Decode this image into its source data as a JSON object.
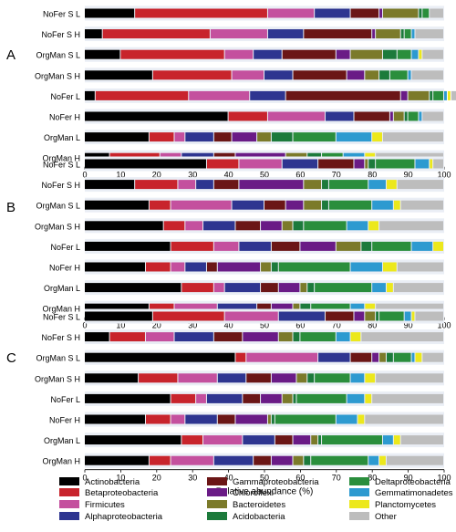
{
  "chart_data": [
    {
      "type": "bar",
      "panel": "A",
      "orientation": "horizontal",
      "stacked": true,
      "xlim": [
        0,
        100
      ],
      "xticks": [
        0,
        10,
        20,
        30,
        40,
        50,
        60,
        70,
        80,
        90,
        100
      ],
      "categories": [
        "NoFer S L",
        "NoFer S H",
        "OrgMan S L",
        "OrgMan S H",
        "NoFer L",
        "NoFer H",
        "OrgMan L",
        "OrgMan H"
      ],
      "series": [
        {
          "name": "Actinobacteria",
          "values": [
            14,
            5,
            10,
            19,
            3,
            40,
            18,
            7
          ]
        },
        {
          "name": "Betaproteobacteria",
          "values": [
            37,
            30,
            29,
            22,
            26,
            11,
            7,
            14
          ]
        },
        {
          "name": "Firmicutes",
          "values": [
            13,
            16,
            8,
            9,
            17,
            16,
            3,
            6
          ]
        },
        {
          "name": "Alphaproteobacteria",
          "values": [
            10,
            10,
            8,
            8,
            10,
            8,
            8,
            9
          ]
        },
        {
          "name": "Gammaproteobacteria",
          "values": [
            8,
            19,
            15,
            15,
            32,
            10,
            5,
            6
          ]
        },
        {
          "name": "Chloroflexi",
          "values": [
            1,
            1,
            4,
            5,
            2,
            1,
            7,
            14
          ]
        },
        {
          "name": "Bacteroidetes",
          "values": [
            10,
            7,
            9,
            4,
            6,
            3,
            4,
            6
          ]
        },
        {
          "name": "Acidobacteria",
          "values": [
            1,
            1,
            4,
            3,
            1,
            1,
            6,
            4
          ]
        },
        {
          "name": "Deltaproteobacteria",
          "values": [
            2,
            2,
            4,
            5,
            3,
            3,
            12,
            6
          ]
        },
        {
          "name": "Gemmatimonadetes",
          "values": [
            0,
            1,
            2,
            1,
            1,
            1,
            10,
            6
          ]
        },
        {
          "name": "Planctomycetes",
          "values": [
            0,
            0,
            1,
            0,
            1,
            0,
            3,
            3
          ]
        },
        {
          "name": "Other",
          "values": [
            4,
            8,
            6,
            9,
            3,
            6,
            17,
            19
          ]
        }
      ]
    },
    {
      "type": "bar",
      "panel": "B",
      "orientation": "horizontal",
      "stacked": true,
      "xlim": [
        0,
        100
      ],
      "xticks": [
        0,
        10,
        20,
        30,
        40,
        50,
        60,
        70,
        80,
        90,
        100
      ],
      "categories": [
        "NoFer S L",
        "NoFer S H",
        "OrgMan S L",
        "OrgMan S H",
        "NoFer L",
        "NoFer H",
        "OrgMan L",
        "OrgMan H"
      ],
      "series": [
        {
          "name": "Actinobacteria",
          "values": [
            34,
            14,
            18,
            22,
            24,
            17,
            27,
            18
          ]
        },
        {
          "name": "Betaproteobacteria",
          "values": [
            9,
            12,
            6,
            6,
            12,
            7,
            9,
            7
          ]
        },
        {
          "name": "Firmicutes",
          "values": [
            12,
            5,
            17,
            5,
            7,
            4,
            3,
            12
          ]
        },
        {
          "name": "Alphaproteobacteria",
          "values": [
            10,
            5,
            9,
            9,
            9,
            6,
            10,
            11
          ]
        },
        {
          "name": "Gammaproteobacteria",
          "values": [
            10,
            7,
            6,
            7,
            8,
            3,
            5,
            4
          ]
        },
        {
          "name": "Chloroflexi",
          "values": [
            3,
            18,
            5,
            6,
            10,
            12,
            6,
            6
          ]
        },
        {
          "name": "Bacteroidetes",
          "values": [
            1,
            5,
            5,
            3,
            7,
            3,
            2,
            2
          ]
        },
        {
          "name": "Acidobacteria",
          "values": [
            2,
            2,
            2,
            3,
            3,
            2,
            2,
            3
          ]
        },
        {
          "name": "Deltaproteobacteria",
          "values": [
            11,
            11,
            12,
            12,
            11,
            20,
            16,
            11
          ]
        },
        {
          "name": "Gemmatimonadetes",
          "values": [
            4,
            5,
            6,
            6,
            6,
            9,
            4,
            4
          ]
        },
        {
          "name": "Planctomycetes",
          "values": [
            1,
            3,
            2,
            3,
            3,
            4,
            2,
            3
          ]
        },
        {
          "name": "Other",
          "values": [
            3,
            13,
            12,
            18,
            0,
            13,
            14,
            19
          ]
        }
      ]
    },
    {
      "type": "bar",
      "panel": "C",
      "orientation": "horizontal",
      "stacked": true,
      "xlabel": "Relative abundance (%)",
      "xlim": [
        0,
        100
      ],
      "xticks": [
        0,
        10,
        20,
        30,
        40,
        50,
        60,
        70,
        80,
        90,
        100
      ],
      "categories": [
        "NoFer S L",
        "NoFer S H",
        "OrgMan S L",
        "OrgMan S H",
        "NoFer L",
        "NoFer H",
        "OrgMan L",
        "OrgMan H"
      ],
      "series": [
        {
          "name": "Actinobacteria",
          "values": [
            19,
            7,
            42,
            15,
            24,
            17,
            27,
            18
          ]
        },
        {
          "name": "Betaproteobacteria",
          "values": [
            20,
            10,
            3,
            11,
            7,
            7,
            6,
            6
          ]
        },
        {
          "name": "Firmicutes",
          "values": [
            15,
            8,
            20,
            11,
            3,
            4,
            11,
            12
          ]
        },
        {
          "name": "Alphaproteobacteria",
          "values": [
            13,
            11,
            9,
            8,
            10,
            9,
            9,
            11
          ]
        },
        {
          "name": "Gammaproteobacteria",
          "values": [
            8,
            8,
            6,
            7,
            5,
            5,
            5,
            5
          ]
        },
        {
          "name": "Chloroflexi",
          "values": [
            3,
            10,
            2,
            7,
            6,
            9,
            5,
            6
          ]
        },
        {
          "name": "Bacteroidetes",
          "values": [
            3,
            4,
            2,
            3,
            3,
            1,
            2,
            3
          ]
        },
        {
          "name": "Acidobacteria",
          "values": [
            1,
            2,
            2,
            2,
            1,
            1,
            1,
            2
          ]
        },
        {
          "name": "Deltaproteobacteria",
          "values": [
            7,
            10,
            5,
            10,
            14,
            17,
            17,
            16
          ]
        },
        {
          "name": "Gemmatimonadetes",
          "values": [
            2,
            4,
            1,
            4,
            5,
            6,
            3,
            3
          ]
        },
        {
          "name": "Planctomycetes",
          "values": [
            1,
            3,
            2,
            3,
            2,
            2,
            2,
            2
          ]
        },
        {
          "name": "Other",
          "values": [
            8,
            23,
            6,
            19,
            20,
            22,
            12,
            16
          ]
        }
      ]
    }
  ],
  "legend": {
    "placement": "bottom",
    "items": [
      {
        "name": "Actinobacteria",
        "color": "#000000"
      },
      {
        "name": "Betaproteobacteria",
        "color": "#c8242c"
      },
      {
        "name": "Firmicutes",
        "color": "#c4509e"
      },
      {
        "name": "Alphaproteobacteria",
        "color": "#2e3590"
      },
      {
        "name": "Gammaproteobacteria",
        "color": "#6b1616"
      },
      {
        "name": "Chloroflexi",
        "color": "#6a1b86"
      },
      {
        "name": "Bacteroidetes",
        "color": "#7b7a2a"
      },
      {
        "name": "Acidobacteria",
        "color": "#1c7a3b"
      },
      {
        "name": "Deltaproteobacteria",
        "color": "#2a8e3c"
      },
      {
        "name": "Gemmatimonadetes",
        "color": "#2d9ad0"
      },
      {
        "name": "Planctomycetes",
        "color": "#ece81c"
      },
      {
        "name": "Other",
        "color": "#bdbdbd"
      }
    ]
  }
}
